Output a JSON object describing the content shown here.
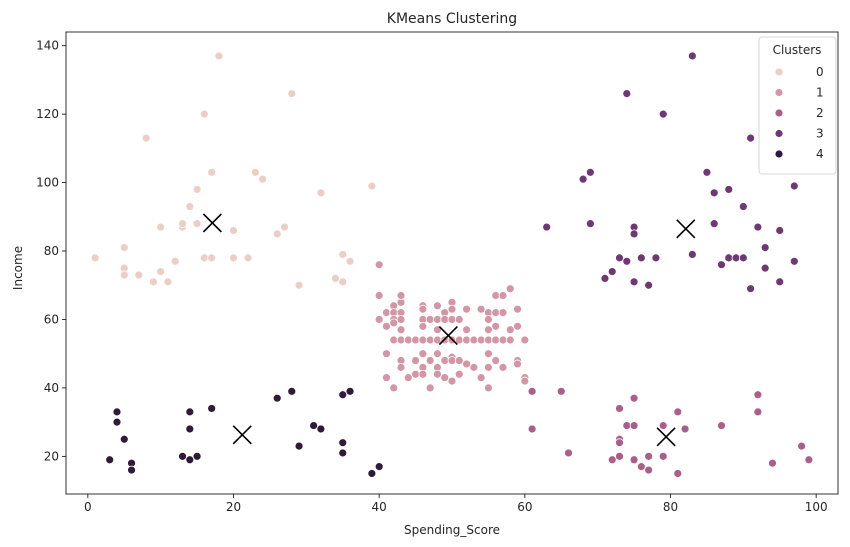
{
  "chart_data": {
    "type": "scatter",
    "title": "KMeans Clustering",
    "xlabel": "Spending_Score",
    "ylabel": "Income",
    "xlim": [
      -3,
      103
    ],
    "ylim": [
      9,
      144
    ],
    "xticks": [
      0,
      20,
      40,
      60,
      80,
      100
    ],
    "yticks": [
      20,
      40,
      60,
      80,
      100,
      120,
      140
    ],
    "grid": false,
    "legend": {
      "title": "Clusters",
      "position": "top-right"
    },
    "colors": [
      "#ebcfc6",
      "#d396a5",
      "#aa5f8b",
      "#6e3973",
      "#2f1a38"
    ],
    "series": [
      {
        "name": "0",
        "points": [
          [
            1,
            78
          ],
          [
            5,
            81
          ],
          [
            5,
            75
          ],
          [
            5,
            73
          ],
          [
            7,
            73
          ],
          [
            8,
            113
          ],
          [
            9,
            71
          ],
          [
            10,
            74
          ],
          [
            10,
            87
          ],
          [
            11,
            71
          ],
          [
            12,
            77
          ],
          [
            13,
            87
          ],
          [
            13,
            88
          ],
          [
            14,
            93
          ],
          [
            15,
            98
          ],
          [
            15,
            88
          ],
          [
            16,
            120
          ],
          [
            16,
            78
          ],
          [
            17,
            103
          ],
          [
            17,
            78
          ],
          [
            18,
            137
          ],
          [
            20,
            86
          ],
          [
            20,
            78
          ],
          [
            22,
            78
          ],
          [
            23,
            103
          ],
          [
            24,
            101
          ],
          [
            26,
            85
          ],
          [
            27,
            87
          ],
          [
            28,
            126
          ],
          [
            29,
            70
          ],
          [
            32,
            97
          ],
          [
            34,
            72
          ],
          [
            35,
            79
          ],
          [
            35,
            71
          ],
          [
            36,
            77
          ],
          [
            39,
            99
          ]
        ]
      },
      {
        "name": "1",
        "points": [
          [
            40,
            76
          ],
          [
            40,
            67
          ],
          [
            40,
            60
          ],
          [
            41,
            62
          ],
          [
            41,
            58
          ],
          [
            41,
            50
          ],
          [
            41,
            43
          ],
          [
            42,
            64
          ],
          [
            42,
            62
          ],
          [
            42,
            60
          ],
          [
            42,
            59
          ],
          [
            42,
            54
          ],
          [
            42,
            40
          ],
          [
            43,
            65
          ],
          [
            43,
            67
          ],
          [
            43,
            62
          ],
          [
            43,
            60
          ],
          [
            43,
            57
          ],
          [
            43,
            54
          ],
          [
            43,
            48
          ],
          [
            43,
            46
          ],
          [
            44,
            54
          ],
          [
            44,
            43
          ],
          [
            45,
            54
          ],
          [
            45,
            48
          ],
          [
            45,
            44
          ],
          [
            46,
            64
          ],
          [
            46,
            63
          ],
          [
            46,
            60
          ],
          [
            46,
            58
          ],
          [
            46,
            54
          ],
          [
            46,
            50
          ],
          [
            46,
            46
          ],
          [
            46,
            44
          ],
          [
            47,
            60
          ],
          [
            47,
            54
          ],
          [
            47,
            48
          ],
          [
            47,
            40
          ],
          [
            48,
            64
          ],
          [
            48,
            60
          ],
          [
            48,
            57
          ],
          [
            48,
            54
          ],
          [
            48,
            50
          ],
          [
            48,
            46
          ],
          [
            48,
            44
          ],
          [
            49,
            62
          ],
          [
            49,
            60
          ],
          [
            49,
            54
          ],
          [
            49,
            48
          ],
          [
            49,
            43
          ],
          [
            50,
            65
          ],
          [
            50,
            63
          ],
          [
            50,
            60
          ],
          [
            50,
            54
          ],
          [
            50,
            49
          ],
          [
            50,
            48
          ],
          [
            50,
            42
          ],
          [
            51,
            60
          ],
          [
            51,
            54
          ],
          [
            51,
            48
          ],
          [
            51,
            44
          ],
          [
            52,
            63
          ],
          [
            52,
            57
          ],
          [
            52,
            54
          ],
          [
            52,
            47
          ],
          [
            53,
            54
          ],
          [
            53,
            46
          ],
          [
            54,
            63
          ],
          [
            54,
            54
          ],
          [
            54,
            43
          ],
          [
            55,
            62
          ],
          [
            55,
            60
          ],
          [
            55,
            57
          ],
          [
            55,
            54
          ],
          [
            55,
            50
          ],
          [
            55,
            46
          ],
          [
            55,
            40
          ],
          [
            56,
            67
          ],
          [
            56,
            62
          ],
          [
            56,
            58
          ],
          [
            56,
            54
          ],
          [
            56,
            48
          ],
          [
            57,
            67
          ],
          [
            57,
            62
          ],
          [
            57,
            54
          ],
          [
            57,
            46
          ],
          [
            58,
            69
          ],
          [
            58,
            57
          ],
          [
            58,
            54
          ],
          [
            59,
            63
          ],
          [
            59,
            58
          ],
          [
            59,
            48
          ],
          [
            59,
            47
          ],
          [
            60,
            54
          ],
          [
            60,
            43
          ],
          [
            60,
            42
          ]
        ]
      },
      {
        "name": "2",
        "points": [
          [
            61,
            39
          ],
          [
            61,
            28
          ],
          [
            65,
            39
          ],
          [
            66,
            21
          ],
          [
            72,
            19
          ],
          [
            73,
            34
          ],
          [
            73,
            25
          ],
          [
            73,
            24
          ],
          [
            73,
            20
          ],
          [
            74,
            29
          ],
          [
            75,
            37
          ],
          [
            75,
            29
          ],
          [
            75,
            19
          ],
          [
            76,
            17
          ],
          [
            77,
            20
          ],
          [
            77,
            16
          ],
          [
            79,
            20
          ],
          [
            79,
            29
          ],
          [
            81,
            33
          ],
          [
            81,
            15
          ],
          [
            82,
            28
          ],
          [
            87,
            29
          ],
          [
            92,
            38
          ],
          [
            92,
            33
          ],
          [
            94,
            18
          ],
          [
            98,
            23
          ],
          [
            99,
            19
          ]
        ]
      },
      {
        "name": "3",
        "points": [
          [
            63,
            87
          ],
          [
            68,
            101
          ],
          [
            69,
            103
          ],
          [
            69,
            88
          ],
          [
            71,
            72
          ],
          [
            72,
            74
          ],
          [
            73,
            78
          ],
          [
            74,
            126
          ],
          [
            74,
            77
          ],
          [
            75,
            87
          ],
          [
            75,
            85
          ],
          [
            75,
            71
          ],
          [
            76,
            78
          ],
          [
            77,
            70
          ],
          [
            78,
            78
          ],
          [
            79,
            120
          ],
          [
            83,
            137
          ],
          [
            83,
            79
          ],
          [
            85,
            103
          ],
          [
            86,
            97
          ],
          [
            86,
            88
          ],
          [
            87,
            76
          ],
          [
            88,
            98
          ],
          [
            88,
            78
          ],
          [
            89,
            78
          ],
          [
            90,
            93
          ],
          [
            90,
            78
          ],
          [
            91,
            113
          ],
          [
            91,
            69
          ],
          [
            92,
            87
          ],
          [
            93,
            81
          ],
          [
            93,
            75
          ],
          [
            95,
            86
          ],
          [
            95,
            71
          ],
          [
            97,
            99
          ],
          [
            97,
            77
          ]
        ]
      },
      {
        "name": "4",
        "points": [
          [
            3,
            19
          ],
          [
            4,
            33
          ],
          [
            4,
            30
          ],
          [
            5,
            25
          ],
          [
            6,
            18
          ],
          [
            6,
            16
          ],
          [
            13,
            20
          ],
          [
            14,
            33
          ],
          [
            14,
            28
          ],
          [
            14,
            19
          ],
          [
            15,
            20
          ],
          [
            17,
            34
          ],
          [
            26,
            37
          ],
          [
            28,
            39
          ],
          [
            29,
            23
          ],
          [
            31,
            29
          ],
          [
            32,
            28
          ],
          [
            35,
            38
          ],
          [
            35,
            24
          ],
          [
            35,
            21
          ],
          [
            36,
            39
          ],
          [
            39,
            15
          ],
          [
            40,
            17
          ]
        ]
      }
    ],
    "centroids": [
      [
        17.1,
        88.2
      ],
      [
        21.2,
        26.3
      ],
      [
        49.5,
        55.3
      ],
      [
        79.4,
        25.7
      ],
      [
        82.1,
        86.5
      ]
    ]
  }
}
